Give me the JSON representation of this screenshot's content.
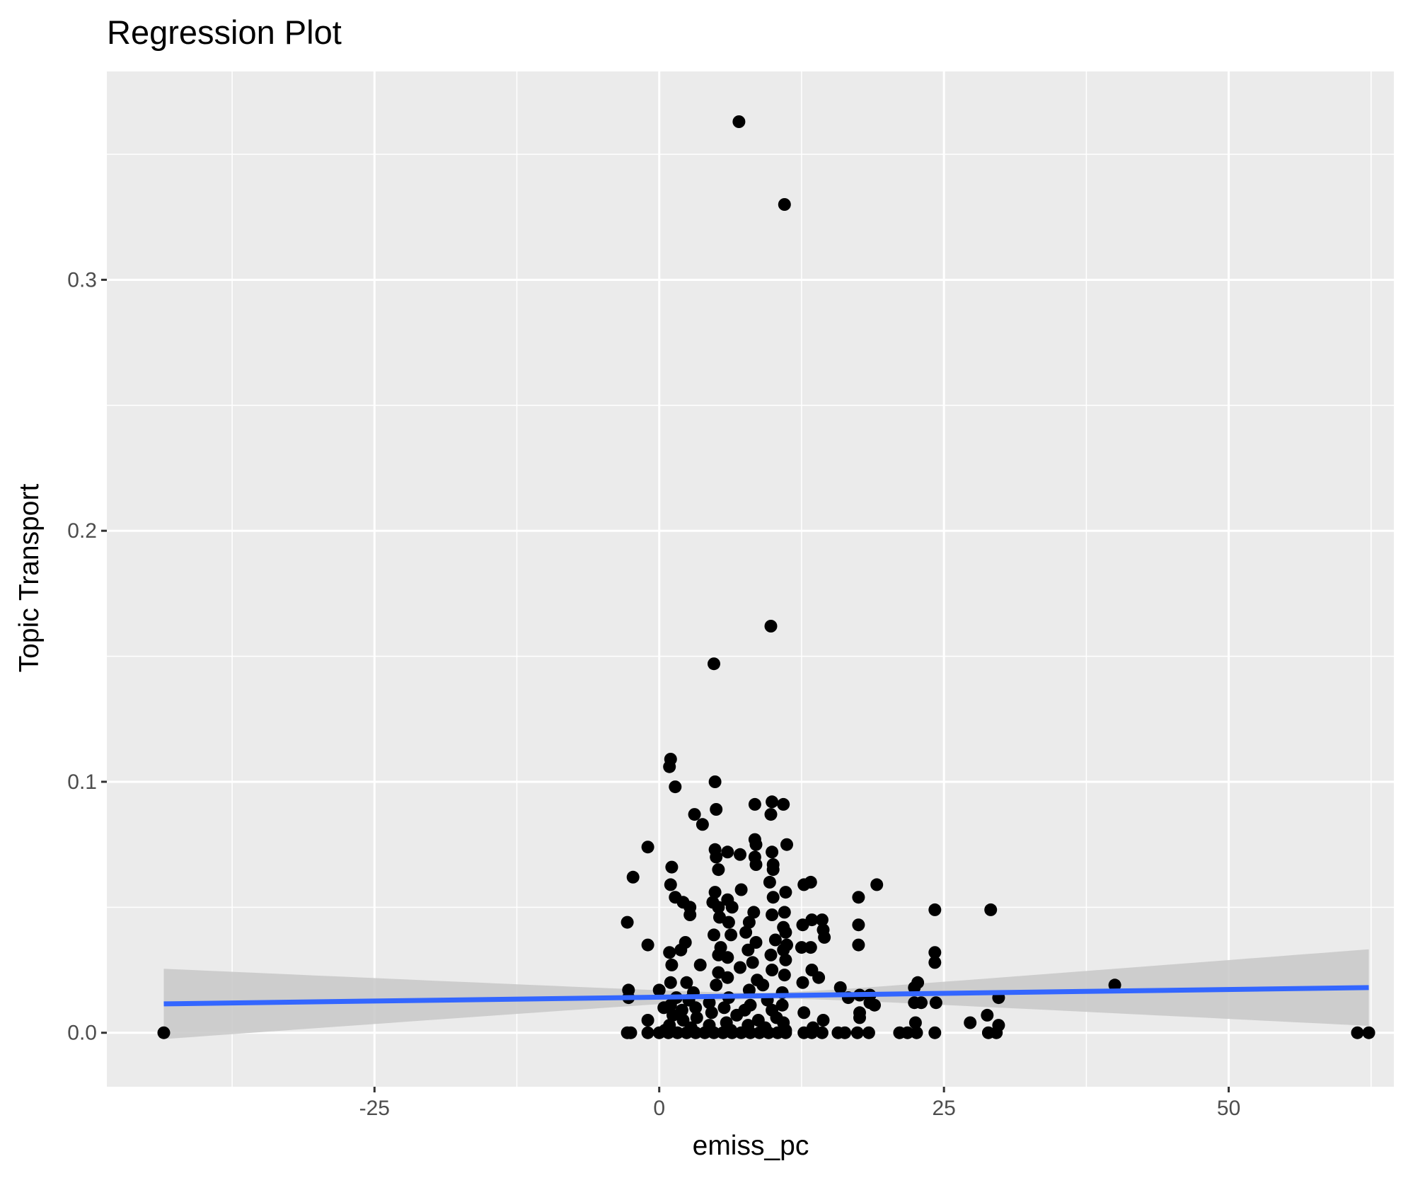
{
  "chart_data": {
    "type": "scatter",
    "title": "Regression Plot",
    "xlabel": "emiss_pc",
    "ylabel": "Topic Transport",
    "xlim": [
      -48.5,
      64.5
    ],
    "ylim": [
      -0.0215,
      0.383
    ],
    "x_ticks": [
      -25,
      0,
      25,
      50
    ],
    "x_tick_labels": [
      "-25",
      "0",
      "25",
      "50"
    ],
    "y_ticks": [
      0.0,
      0.1,
      0.2,
      0.3
    ],
    "y_tick_labels": [
      "0.0",
      "0.1",
      "0.2",
      "0.3"
    ],
    "grid": true,
    "legend": "none",
    "colors": {
      "panel_background": "#ebebeb",
      "grid_line": "#ffffff",
      "point": "#000000",
      "regression_line": "#3366ff",
      "confidence_band": "#c8c8c8"
    },
    "regression": {
      "x": [
        -43.5,
        62.3
      ],
      "y": [
        0.0115,
        0.018
      ],
      "ci_lower": [
        -0.0025,
        0.0025
      ],
      "ci_upper": [
        0.0255,
        0.033
      ]
    },
    "points": [
      [
        -43.5,
        0.0
      ],
      [
        7.0,
        0.363
      ],
      [
        11.0,
        0.33
      ],
      [
        9.8,
        0.162
      ],
      [
        4.8,
        0.147
      ],
      [
        1.0,
        0.109
      ],
      [
        0.9,
        0.106
      ],
      [
        4.9,
        0.1
      ],
      [
        1.4,
        0.098
      ],
      [
        9.9,
        0.092
      ],
      [
        10.9,
        0.091
      ],
      [
        8.4,
        0.091
      ],
      [
        5.0,
        0.089
      ],
      [
        3.1,
        0.087
      ],
      [
        9.8,
        0.087
      ],
      [
        3.8,
        0.083
      ],
      [
        8.4,
        0.077
      ],
      [
        11.2,
        0.075
      ],
      [
        8.5,
        0.075
      ],
      [
        -1.0,
        0.074
      ],
      [
        4.9,
        0.073
      ],
      [
        9.9,
        0.072
      ],
      [
        6.0,
        0.072
      ],
      [
        7.1,
        0.071
      ],
      [
        5.0,
        0.07
      ],
      [
        8.4,
        0.07
      ],
      [
        10.0,
        0.067
      ],
      [
        8.5,
        0.067
      ],
      [
        1.1,
        0.066
      ],
      [
        5.2,
        0.065
      ],
      [
        10.0,
        0.065
      ],
      [
        -2.3,
        0.062
      ],
      [
        9.7,
        0.06
      ],
      [
        13.3,
        0.06
      ],
      [
        12.7,
        0.059
      ],
      [
        19.1,
        0.059
      ],
      [
        1.0,
        0.059
      ],
      [
        7.2,
        0.057
      ],
      [
        4.9,
        0.056
      ],
      [
        11.1,
        0.056
      ],
      [
        10.0,
        0.054
      ],
      [
        17.5,
        0.054
      ],
      [
        1.4,
        0.054
      ],
      [
        2.1,
        0.052
      ],
      [
        6.0,
        0.053
      ],
      [
        4.7,
        0.052
      ],
      [
        5.2,
        0.05
      ],
      [
        6.4,
        0.05
      ],
      [
        2.7,
        0.05
      ],
      [
        24.2,
        0.049
      ],
      [
        29.1,
        0.049
      ],
      [
        8.3,
        0.048
      ],
      [
        11.0,
        0.048
      ],
      [
        2.7,
        0.047
      ],
      [
        9.9,
        0.047
      ],
      [
        5.3,
        0.046
      ],
      [
        14.3,
        0.045
      ],
      [
        13.4,
        0.045
      ],
      [
        -2.8,
        0.044
      ],
      [
        6.1,
        0.044
      ],
      [
        7.9,
        0.044
      ],
      [
        12.6,
        0.043
      ],
      [
        17.5,
        0.043
      ],
      [
        10.9,
        0.042
      ],
      [
        14.4,
        0.041
      ],
      [
        7.6,
        0.04
      ],
      [
        11.1,
        0.04
      ],
      [
        4.8,
        0.039
      ],
      [
        6.3,
        0.039
      ],
      [
        14.5,
        0.038
      ],
      [
        10.2,
        0.037
      ],
      [
        2.3,
        0.036
      ],
      [
        8.5,
        0.036
      ],
      [
        -1.0,
        0.035
      ],
      [
        11.2,
        0.035
      ],
      [
        17.5,
        0.035
      ],
      [
        5.4,
        0.034
      ],
      [
        12.5,
        0.034
      ],
      [
        13.3,
        0.034
      ],
      [
        1.9,
        0.033
      ],
      [
        7.8,
        0.033
      ],
      [
        10.9,
        0.033
      ],
      [
        0.9,
        0.032
      ],
      [
        24.2,
        0.032
      ],
      [
        5.2,
        0.031
      ],
      [
        9.8,
        0.031
      ],
      [
        6.0,
        0.03
      ],
      [
        11.1,
        0.029
      ],
      [
        8.2,
        0.028
      ],
      [
        24.2,
        0.028
      ],
      [
        1.1,
        0.027
      ],
      [
        3.6,
        0.027
      ],
      [
        7.1,
        0.026
      ],
      [
        13.4,
        0.025
      ],
      [
        9.9,
        0.025
      ],
      [
        5.2,
        0.024
      ],
      [
        11.0,
        0.023
      ],
      [
        14.0,
        0.022
      ],
      [
        6.0,
        0.022
      ],
      [
        8.6,
        0.021
      ],
      [
        1.0,
        0.02
      ],
      [
        12.6,
        0.02
      ],
      [
        22.7,
        0.02
      ],
      [
        2.4,
        0.02
      ],
      [
        5.0,
        0.019
      ],
      [
        9.1,
        0.019
      ],
      [
        15.9,
        0.018
      ],
      [
        22.4,
        0.018
      ],
      [
        -2.7,
        0.017
      ],
      [
        0.0,
        0.017
      ],
      [
        7.9,
        0.017
      ],
      [
        3.0,
        0.016
      ],
      [
        10.8,
        0.016
      ],
      [
        17.6,
        0.015
      ],
      [
        18.5,
        0.015
      ],
      [
        40.0,
        0.019
      ],
      [
        -2.7,
        0.014
      ],
      [
        1.5,
        0.014
      ],
      [
        6.1,
        0.014
      ],
      [
        16.6,
        0.014
      ],
      [
        29.8,
        0.014
      ],
      [
        2.6,
        0.013
      ],
      [
        9.5,
        0.013
      ],
      [
        22.4,
        0.012
      ],
      [
        23.0,
        0.012
      ],
      [
        24.3,
        0.012
      ],
      [
        18.5,
        0.012
      ],
      [
        4.4,
        0.012
      ],
      [
        1.0,
        0.011
      ],
      [
        8.0,
        0.011
      ],
      [
        10.8,
        0.011
      ],
      [
        18.9,
        0.011
      ],
      [
        3.2,
        0.01
      ],
      [
        5.7,
        0.01
      ],
      [
        0.4,
        0.01
      ],
      [
        7.5,
        0.009
      ],
      [
        9.9,
        0.009
      ],
      [
        2.0,
        0.009
      ],
      [
        12.7,
        0.008
      ],
      [
        17.6,
        0.008
      ],
      [
        4.6,
        0.008
      ],
      [
        28.8,
        0.007
      ],
      [
        1.2,
        0.007
      ],
      [
        6.8,
        0.007
      ],
      [
        10.3,
        0.006
      ],
      [
        17.6,
        0.006
      ],
      [
        3.3,
        0.006
      ],
      [
        8.7,
        0.005
      ],
      [
        -1.0,
        0.005
      ],
      [
        14.4,
        0.005
      ],
      [
        2.1,
        0.005
      ],
      [
        5.9,
        0.004
      ],
      [
        22.5,
        0.004
      ],
      [
        27.3,
        0.004
      ],
      [
        10.9,
        0.004
      ],
      [
        0.9,
        0.003
      ],
      [
        4.4,
        0.003
      ],
      [
        7.8,
        0.003
      ],
      [
        29.8,
        0.003
      ],
      [
        13.5,
        0.002
      ],
      [
        2.8,
        0.002
      ],
      [
        9.3,
        0.002
      ],
      [
        0.5,
        0.001
      ],
      [
        6.3,
        0.001
      ],
      [
        11.1,
        0.001
      ],
      [
        -2.8,
        0.0
      ],
      [
        -2.5,
        0.0
      ],
      [
        -1.0,
        0.0
      ],
      [
        0.0,
        0.0
      ],
      [
        0.8,
        0.0
      ],
      [
        1.6,
        0.0
      ],
      [
        2.4,
        0.0
      ],
      [
        3.2,
        0.0
      ],
      [
        4.0,
        0.0
      ],
      [
        4.8,
        0.0
      ],
      [
        5.6,
        0.0
      ],
      [
        6.4,
        0.0
      ],
      [
        7.2,
        0.0
      ],
      [
        8.0,
        0.0
      ],
      [
        8.8,
        0.0
      ],
      [
        9.6,
        0.0
      ],
      [
        10.4,
        0.0
      ],
      [
        11.1,
        0.0
      ],
      [
        12.7,
        0.0
      ],
      [
        13.4,
        0.0
      ],
      [
        14.3,
        0.0
      ],
      [
        15.7,
        0.0
      ],
      [
        16.3,
        0.0
      ],
      [
        17.4,
        0.0
      ],
      [
        18.4,
        0.0
      ],
      [
        21.1,
        0.0
      ],
      [
        21.8,
        0.0
      ],
      [
        22.6,
        0.0
      ],
      [
        24.2,
        0.0
      ],
      [
        28.9,
        0.0
      ],
      [
        29.6,
        0.0
      ],
      [
        61.3,
        0.0
      ],
      [
        62.3,
        0.0
      ]
    ]
  }
}
